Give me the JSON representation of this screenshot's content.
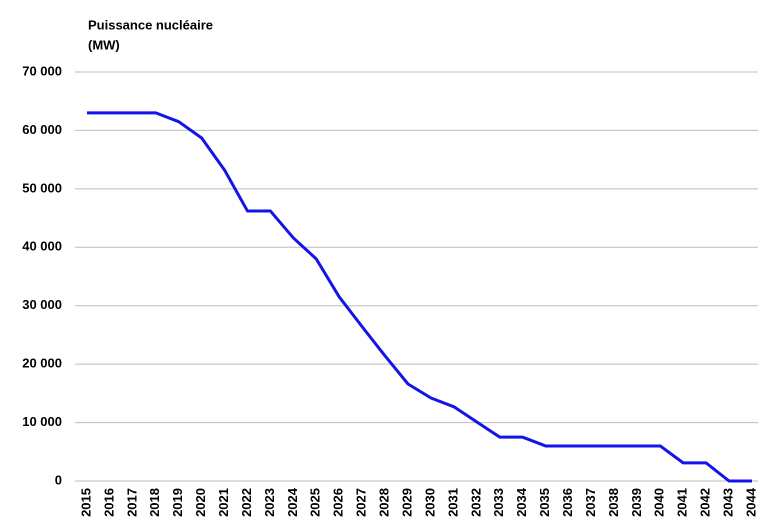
{
  "chart_data": {
    "type": "line",
    "title": "Puissance nucléaire",
    "y_label": "(MW)",
    "categories": [
      "2015",
      "2016",
      "2017",
      "2018",
      "2019",
      "2020",
      "2021",
      "2022",
      "2023",
      "2024",
      "2025",
      "2026",
      "2027",
      "2028",
      "2029",
      "2030",
      "2031",
      "2032",
      "2033",
      "2034",
      "2035",
      "2036",
      "2037",
      "2038",
      "2039",
      "2040",
      "2041",
      "2042",
      "2043",
      "2044"
    ],
    "series": [
      {
        "name": "Puissance nucléaire",
        "color": "#1414e6",
        "values": [
          63000,
          63000,
          63000,
          63000,
          61500,
          58700,
          53200,
          46200,
          46200,
          41600,
          38000,
          31500,
          26400,
          21400,
          16600,
          14200,
          12700,
          10100,
          7500,
          7500,
          6000,
          6000,
          6000,
          6000,
          6000,
          6000,
          3100,
          3100,
          0,
          0
        ]
      }
    ],
    "ylim": [
      0,
      70000
    ],
    "yticks": [
      0,
      {
        "value": 10000,
        "label": "10 000"
      },
      {
        "value": 20000,
        "label": "20 000"
      },
      {
        "value": 30000,
        "label": "30 000"
      },
      {
        "value": 40000,
        "label": "40 000"
      },
      {
        "value": 50000,
        "label": "50 000"
      },
      {
        "value": 60000,
        "label": "60 000"
      },
      {
        "value": 70000,
        "label": "70 000"
      }
    ],
    "grid": true
  }
}
